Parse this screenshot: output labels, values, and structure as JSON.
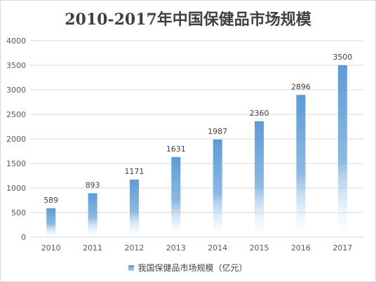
{
  "chart_data": {
    "type": "bar",
    "title": "2010-2017年中国保健品市场规模",
    "categories": [
      "2010",
      "2011",
      "2012",
      "2013",
      "2014",
      "2015",
      "2016",
      "2017"
    ],
    "series": [
      {
        "name": "我国保健品市场规模（亿元）",
        "values": [
          589,
          893,
          1171,
          1631,
          1987,
          2360,
          2896,
          3500
        ]
      }
    ],
    "data_labels": [
      "589",
      "893",
      "1171",
      "1631",
      "1987",
      "2360",
      "2896",
      "3500"
    ],
    "yticks": [
      "0",
      "500",
      "1000",
      "1500",
      "2000",
      "2500",
      "3000",
      "3500",
      "4000"
    ],
    "ylim": [
      0,
      4000
    ],
    "xlabel": "",
    "ylabel": "",
    "grid": true,
    "legend_position": "bottom",
    "bar_color": "#5b9bd5"
  }
}
